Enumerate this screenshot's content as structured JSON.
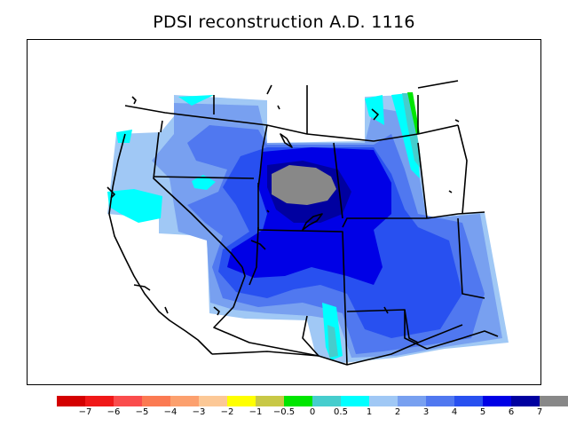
{
  "title": "PDSI reconstruction A.D. 1116",
  "legend": {
    "colors": [
      "#d40000",
      "#f01818",
      "#fa4c4c",
      "#fb7a52",
      "#fca06e",
      "#fcc896",
      "#ffff00",
      "#c8c846",
      "#00e600",
      "#46cdcd",
      "#00ffff",
      "#a0c8f5",
      "#78a0f0",
      "#5078f0",
      "#2850f0",
      "#0000e6",
      "#0000a0",
      "#888888"
    ],
    "labels": [
      "−7",
      "−6",
      "−5",
      "−4",
      "−3",
      "−2",
      "−1",
      "−0.5",
      "0",
      "0.5",
      "1",
      "2",
      "3",
      "4",
      "5",
      "6",
      "7"
    ]
  }
}
